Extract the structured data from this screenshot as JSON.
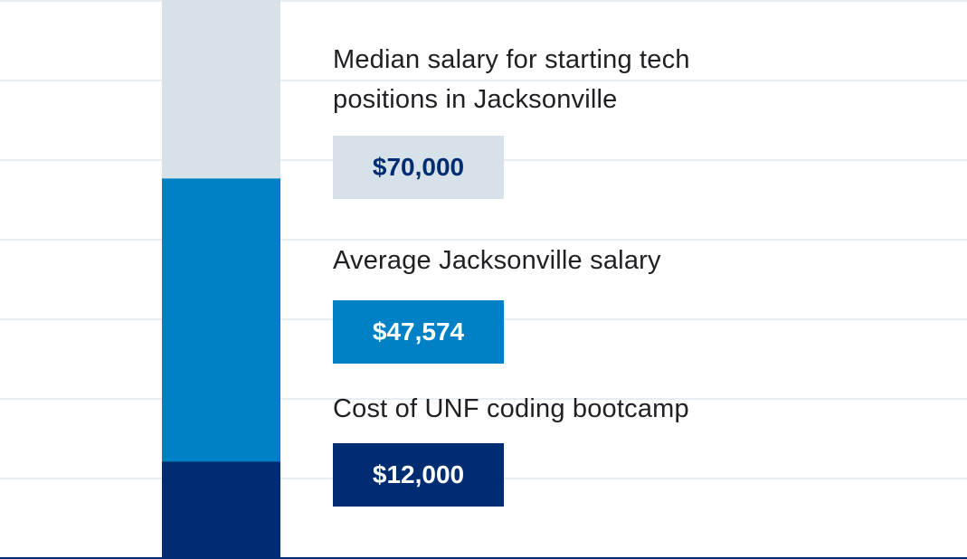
{
  "chart_data": {
    "type": "bar",
    "stacked": false,
    "categories": [
      "Median salary for starting tech positions in Jacksonville",
      "Average Jacksonville salary",
      "Cost of UNF coding bootcamp"
    ],
    "values": [
      70000,
      47574,
      12000
    ],
    "value_labels": [
      "$70,000",
      "$47,574",
      "$12,000"
    ],
    "ylim": [
      0,
      70000
    ],
    "grid": true,
    "colors": [
      "#d6e1ea",
      "#0081c6",
      "#002d72"
    ],
    "label_text_colors": [
      "#002d72",
      "#ffffff",
      "#ffffff"
    ],
    "grid_color": "#e8edf1",
    "axis_color": "#002d72"
  }
}
